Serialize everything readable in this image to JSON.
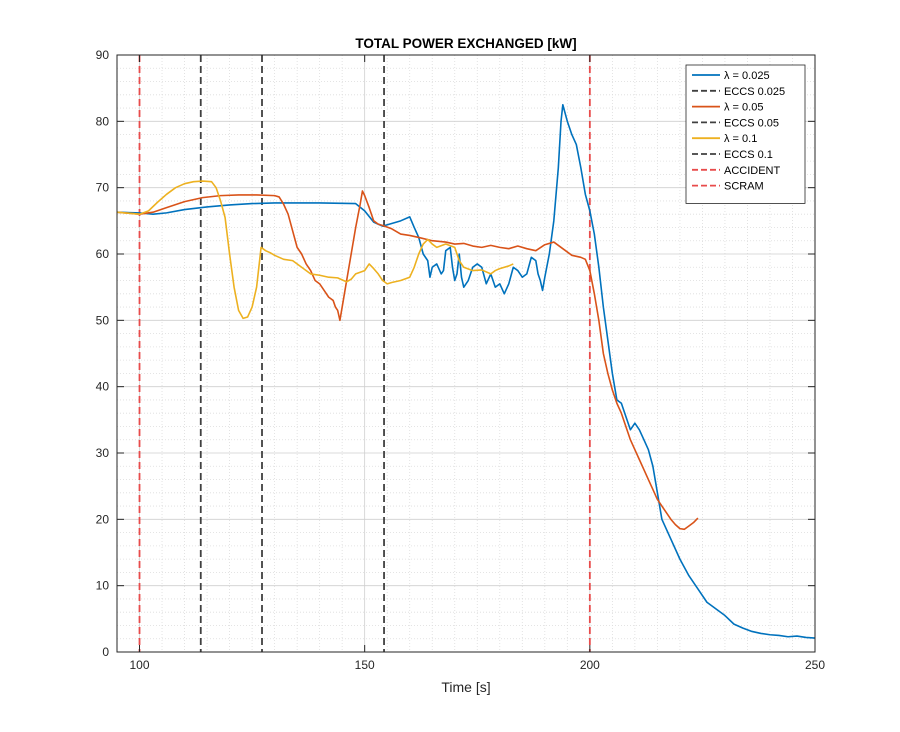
{
  "chart_data": {
    "type": "line",
    "title": "TOTAL POWER EXCHANGED [kW]",
    "xlabel": "Time [s]",
    "ylabel": "",
    "xlim": [
      95,
      250
    ],
    "ylim": [
      0,
      90
    ],
    "xticks": [
      100,
      150,
      200,
      250
    ],
    "yticks": [
      0,
      10,
      20,
      30,
      40,
      50,
      60,
      70,
      80,
      90
    ],
    "grid": "on (major and minor, dotted)",
    "legend_position": "top-right",
    "series": [
      {
        "name": "λ = 0.025",
        "color": "#0072BD",
        "style": "solid",
        "points": [
          [
            95,
            66.3
          ],
          [
            100,
            66.2
          ],
          [
            103,
            66.0
          ],
          [
            106,
            66.2
          ],
          [
            110,
            66.7
          ],
          [
            115,
            67.1
          ],
          [
            120,
            67.4
          ],
          [
            125,
            67.6
          ],
          [
            130,
            67.7
          ],
          [
            140,
            67.7
          ],
          [
            148,
            67.6
          ],
          [
            150,
            66.5
          ],
          [
            152,
            64.8
          ],
          [
            154,
            64.2
          ],
          [
            156,
            64.6
          ],
          [
            158,
            65.0
          ],
          [
            160,
            65.6
          ],
          [
            161,
            64.0
          ],
          [
            162,
            62.5
          ],
          [
            163,
            60.0
          ],
          [
            164,
            59.0
          ],
          [
            164.5,
            56.5
          ],
          [
            165,
            58.0
          ],
          [
            166,
            58.5
          ],
          [
            167,
            57.0
          ],
          [
            167.5,
            57.5
          ],
          [
            168,
            60.5
          ],
          [
            169,
            61.0
          ],
          [
            169.5,
            58.0
          ],
          [
            170,
            56.0
          ],
          [
            170.5,
            57.0
          ],
          [
            171,
            60.0
          ],
          [
            171.5,
            56.5
          ],
          [
            172,
            55.0
          ],
          [
            173,
            56.0
          ],
          [
            174,
            58.0
          ],
          [
            175,
            58.5
          ],
          [
            176,
            58.0
          ],
          [
            177,
            55.5
          ],
          [
            178,
            57.0
          ],
          [
            179,
            55.0
          ],
          [
            180,
            55.5
          ],
          [
            181,
            54.0
          ],
          [
            182,
            55.5
          ],
          [
            183,
            58.0
          ],
          [
            184,
            57.5
          ],
          [
            185,
            56.5
          ],
          [
            186,
            57.0
          ],
          [
            187,
            59.5
          ],
          [
            188,
            59.0
          ],
          [
            188.5,
            57.0
          ],
          [
            189,
            56.0
          ],
          [
            189.5,
            54.5
          ],
          [
            190,
            56.5
          ],
          [
            191,
            60.0
          ],
          [
            192,
            65.0
          ],
          [
            193,
            73.0
          ],
          [
            193.6,
            80.0
          ],
          [
            194,
            82.5
          ],
          [
            195,
            80.0
          ],
          [
            196,
            78.0
          ],
          [
            197,
            76.5
          ],
          [
            198,
            73.0
          ],
          [
            199,
            69.0
          ],
          [
            200,
            66.5
          ],
          [
            201,
            63.0
          ],
          [
            202,
            58.0
          ],
          [
            203,
            52.0
          ],
          [
            204,
            47.0
          ],
          [
            205,
            42.0
          ],
          [
            206,
            38.0
          ],
          [
            207,
            37.5
          ],
          [
            208,
            35.5
          ],
          [
            209,
            33.5
          ],
          [
            210,
            34.5
          ],
          [
            211,
            33.5
          ],
          [
            212,
            32.0
          ],
          [
            213,
            30.5
          ],
          [
            214,
            28.0
          ],
          [
            215,
            24.0
          ],
          [
            216,
            20.0
          ],
          [
            218,
            17.0
          ],
          [
            220,
            14.0
          ],
          [
            222,
            11.5
          ],
          [
            224,
            9.5
          ],
          [
            226,
            7.5
          ],
          [
            228,
            6.5
          ],
          [
            230,
            5.5
          ],
          [
            232,
            4.2
          ],
          [
            234,
            3.6
          ],
          [
            236,
            3.1
          ],
          [
            238,
            2.8
          ],
          [
            240,
            2.6
          ],
          [
            242,
            2.5
          ],
          [
            244,
            2.3
          ],
          [
            246,
            2.4
          ],
          [
            248,
            2.2
          ],
          [
            250,
            2.1
          ]
        ]
      },
      {
        "name": "ECCS 0.025",
        "color": "#404040",
        "style": "dashed",
        "vline": 113.6
      },
      {
        "name": "λ = 0.05",
        "color": "#D95319",
        "style": "solid",
        "points": [
          [
            95,
            66.3
          ],
          [
            100,
            66.0
          ],
          [
            103,
            66.3
          ],
          [
            106,
            67.0
          ],
          [
            110,
            67.9
          ],
          [
            114,
            68.5
          ],
          [
            118,
            68.8
          ],
          [
            122,
            68.9
          ],
          [
            126,
            68.9
          ],
          [
            130,
            68.8
          ],
          [
            131,
            68.6
          ],
          [
            132,
            67.5
          ],
          [
            133,
            66.0
          ],
          [
            134,
            63.5
          ],
          [
            135,
            61.0
          ],
          [
            136,
            60.0
          ],
          [
            137,
            58.5
          ],
          [
            138,
            57.5
          ],
          [
            139,
            56.0
          ],
          [
            140,
            55.5
          ],
          [
            141,
            54.5
          ],
          [
            142,
            53.5
          ],
          [
            143,
            53.0
          ],
          [
            143.5,
            52.0
          ],
          [
            144,
            51.5
          ],
          [
            144.5,
            50.0
          ],
          [
            145,
            52.0
          ],
          [
            146,
            56.0
          ],
          [
            147,
            60.0
          ],
          [
            148,
            64.0
          ],
          [
            149,
            67.5
          ],
          [
            149.5,
            69.5
          ],
          [
            150,
            68.8
          ],
          [
            151,
            67.0
          ],
          [
            152,
            65.0
          ],
          [
            153,
            64.5
          ],
          [
            154,
            64.3
          ],
          [
            156,
            63.8
          ],
          [
            158,
            63.0
          ],
          [
            160,
            62.8
          ],
          [
            162,
            62.5
          ],
          [
            165,
            62.0
          ],
          [
            168,
            61.8
          ],
          [
            170,
            61.5
          ],
          [
            172,
            61.6
          ],
          [
            174,
            61.2
          ],
          [
            176,
            61.0
          ],
          [
            178,
            61.3
          ],
          [
            180,
            61.0
          ],
          [
            182,
            60.8
          ],
          [
            184,
            61.2
          ],
          [
            186,
            60.8
          ],
          [
            188,
            60.5
          ],
          [
            190,
            61.4
          ],
          [
            192,
            61.8
          ],
          [
            194,
            60.8
          ],
          [
            196,
            59.8
          ],
          [
            198,
            59.5
          ],
          [
            199,
            59.2
          ],
          [
            200,
            57.5
          ],
          [
            201,
            54.0
          ],
          [
            202,
            50.0
          ],
          [
            203,
            45.0
          ],
          [
            204,
            42.0
          ],
          [
            205,
            39.5
          ],
          [
            206,
            37.5
          ],
          [
            207,
            36.0
          ],
          [
            208,
            34.0
          ],
          [
            209,
            32.0
          ],
          [
            210,
            30.5
          ],
          [
            211,
            29.0
          ],
          [
            212,
            27.5
          ],
          [
            213,
            26.0
          ],
          [
            214,
            24.5
          ],
          [
            215,
            23.0
          ],
          [
            216,
            22.0
          ],
          [
            217,
            21.0
          ],
          [
            218,
            20.0
          ],
          [
            219,
            19.2
          ],
          [
            220,
            18.6
          ],
          [
            221,
            18.5
          ],
          [
            222,
            19.0
          ],
          [
            223,
            19.5
          ],
          [
            224,
            20.2
          ]
        ]
      },
      {
        "name": "ECCS 0.05",
        "color": "#404040",
        "style": "dashed",
        "vline": 127.2
      },
      {
        "name": "λ = 0.1",
        "color": "#EDB120",
        "style": "solid",
        "points": [
          [
            95,
            66.3
          ],
          [
            100,
            66.0
          ],
          [
            102,
            66.5
          ],
          [
            104,
            67.8
          ],
          [
            106,
            69.0
          ],
          [
            108,
            70.0
          ],
          [
            110,
            70.6
          ],
          [
            112,
            70.9
          ],
          [
            114,
            71.0
          ],
          [
            116,
            70.9
          ],
          [
            117,
            70.0
          ],
          [
            118,
            68.0
          ],
          [
            119,
            65.5
          ],
          [
            120,
            60.0
          ],
          [
            121,
            55.0
          ],
          [
            122,
            51.5
          ],
          [
            123,
            50.3
          ],
          [
            124,
            50.5
          ],
          [
            125,
            52.0
          ],
          [
            126,
            55.0
          ],
          [
            126.5,
            58.0
          ],
          [
            127,
            61.0
          ],
          [
            128,
            60.5
          ],
          [
            129,
            60.2
          ],
          [
            130,
            59.8
          ],
          [
            131,
            59.5
          ],
          [
            132,
            59.2
          ],
          [
            134,
            59.0
          ],
          [
            136,
            58.0
          ],
          [
            138,
            57.0
          ],
          [
            140,
            56.8
          ],
          [
            142,
            56.5
          ],
          [
            144,
            56.4
          ],
          [
            146,
            55.8
          ],
          [
            147,
            56.2
          ],
          [
            148,
            57.0
          ],
          [
            150,
            57.5
          ],
          [
            151,
            58.5
          ],
          [
            152,
            57.8
          ],
          [
            153,
            57.0
          ],
          [
            154,
            56.0
          ],
          [
            155,
            55.5
          ],
          [
            156,
            55.7
          ],
          [
            158,
            56.0
          ],
          [
            160,
            56.5
          ],
          [
            161,
            58.0
          ],
          [
            162,
            60.0
          ],
          [
            163,
            61.5
          ],
          [
            164,
            62.2
          ],
          [
            165,
            61.5
          ],
          [
            166,
            61.0
          ],
          [
            168,
            61.5
          ],
          [
            170,
            61.0
          ],
          [
            171,
            59.0
          ],
          [
            172,
            58.0
          ],
          [
            174,
            57.5
          ],
          [
            176,
            57.6
          ],
          [
            178,
            57.0
          ],
          [
            179,
            57.5
          ],
          [
            180,
            57.8
          ],
          [
            182,
            58.2
          ],
          [
            183,
            58.5
          ]
        ]
      },
      {
        "name": "ECCS 0.1",
        "color": "#404040",
        "style": "dashed",
        "vline": 154.3
      },
      {
        "name": "ACCIDENT",
        "color": "#E84B4B",
        "style": "dashed",
        "vline": 100
      },
      {
        "name": "SCRAM",
        "color": "#E84B4B",
        "style": "dashed",
        "vline": 200
      }
    ]
  }
}
